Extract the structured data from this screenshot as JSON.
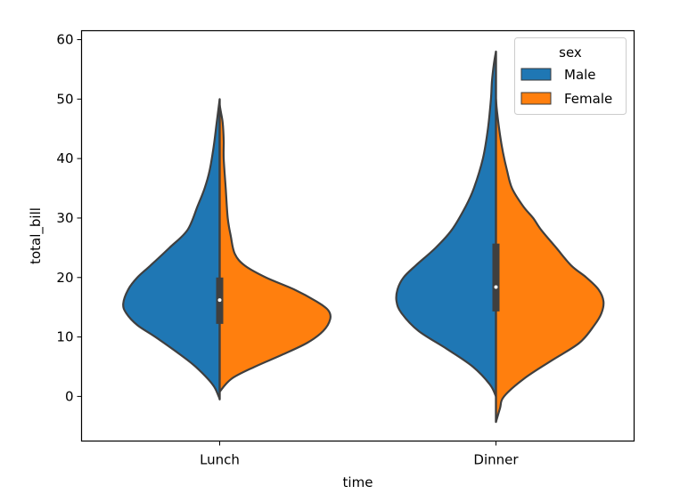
{
  "chart_data": {
    "type": "violin",
    "split": true,
    "xlabel": "time",
    "ylabel": "total_bill",
    "categories": [
      "Lunch",
      "Dinner"
    ],
    "ylim": [
      -7.5,
      61.5
    ],
    "yticks": [
      0,
      10,
      20,
      30,
      40,
      50,
      60
    ],
    "grid": false,
    "legend": {
      "title": "sex",
      "placement": "top-right"
    },
    "series": [
      {
        "name": "Male",
        "color": "#1f77b4"
      },
      {
        "name": "Female",
        "color": "#ff7f0e"
      }
    ],
    "violins": [
      {
        "category": "Lunch",
        "male_profile": [
          [
            -0.5,
            0.0
          ],
          [
            0,
            0.01
          ],
          [
            2,
            0.07
          ],
          [
            5,
            0.24
          ],
          [
            7,
            0.39
          ],
          [
            10,
            0.64
          ],
          [
            12,
            0.82
          ],
          [
            14,
            0.93
          ],
          [
            15.6,
            0.96
          ],
          [
            18,
            0.91
          ],
          [
            20,
            0.82
          ],
          [
            22,
            0.69
          ],
          [
            25,
            0.5
          ],
          [
            28,
            0.32
          ],
          [
            32,
            0.22
          ],
          [
            35,
            0.15
          ],
          [
            38,
            0.1
          ],
          [
            42,
            0.06
          ],
          [
            46,
            0.03
          ],
          [
            50,
            0.0
          ]
        ],
        "female_profile": [
          [
            0.8,
            0.0
          ],
          [
            3,
            0.12
          ],
          [
            5,
            0.35
          ],
          [
            7,
            0.62
          ],
          [
            9,
            0.87
          ],
          [
            11,
            1.03
          ],
          [
            13,
            1.1
          ],
          [
            14.5,
            1.08
          ],
          [
            16,
            0.96
          ],
          [
            18,
            0.74
          ],
          [
            20,
            0.46
          ],
          [
            22,
            0.25
          ],
          [
            24,
            0.15
          ],
          [
            27,
            0.11
          ],
          [
            30,
            0.08
          ],
          [
            35,
            0.06
          ],
          [
            40,
            0.04
          ],
          [
            43,
            0.04
          ],
          [
            46,
            0.03
          ],
          [
            48,
            0.01
          ],
          [
            49,
            0.0
          ]
        ],
        "quartiles": [
          12.2,
          20.0
        ],
        "median": 16.2
      },
      {
        "category": "Dinner",
        "male_profile": [
          [
            0,
            0.0
          ],
          [
            2,
            0.06
          ],
          [
            5,
            0.23
          ],
          [
            8,
            0.49
          ],
          [
            11,
            0.77
          ],
          [
            14,
            0.94
          ],
          [
            16,
            0.99
          ],
          [
            18,
            0.98
          ],
          [
            20,
            0.92
          ],
          [
            22,
            0.8
          ],
          [
            25,
            0.6
          ],
          [
            28,
            0.44
          ],
          [
            32,
            0.3
          ],
          [
            35,
            0.22
          ],
          [
            40,
            0.13
          ],
          [
            45,
            0.08
          ],
          [
            50,
            0.05
          ],
          [
            53,
            0.04
          ],
          [
            56,
            0.02
          ],
          [
            58,
            0.0
          ]
        ],
        "female_profile": [
          [
            -4.3,
            0.0
          ],
          [
            -2,
            0.04
          ],
          [
            0,
            0.08
          ],
          [
            3,
            0.28
          ],
          [
            6,
            0.55
          ],
          [
            9,
            0.83
          ],
          [
            12,
            0.98
          ],
          [
            14,
            1.05
          ],
          [
            16,
            1.07
          ],
          [
            18,
            1.02
          ],
          [
            20,
            0.9
          ],
          [
            22,
            0.75
          ],
          [
            25,
            0.6
          ],
          [
            28,
            0.45
          ],
          [
            30,
            0.37
          ],
          [
            32,
            0.27
          ],
          [
            35,
            0.16
          ],
          [
            38,
            0.11
          ],
          [
            41,
            0.07
          ],
          [
            44,
            0.04
          ],
          [
            48,
            0.01
          ],
          [
            50,
            0.0
          ]
        ],
        "quartiles": [
          14.3,
          25.7
        ],
        "median": 18.4
      }
    ]
  }
}
